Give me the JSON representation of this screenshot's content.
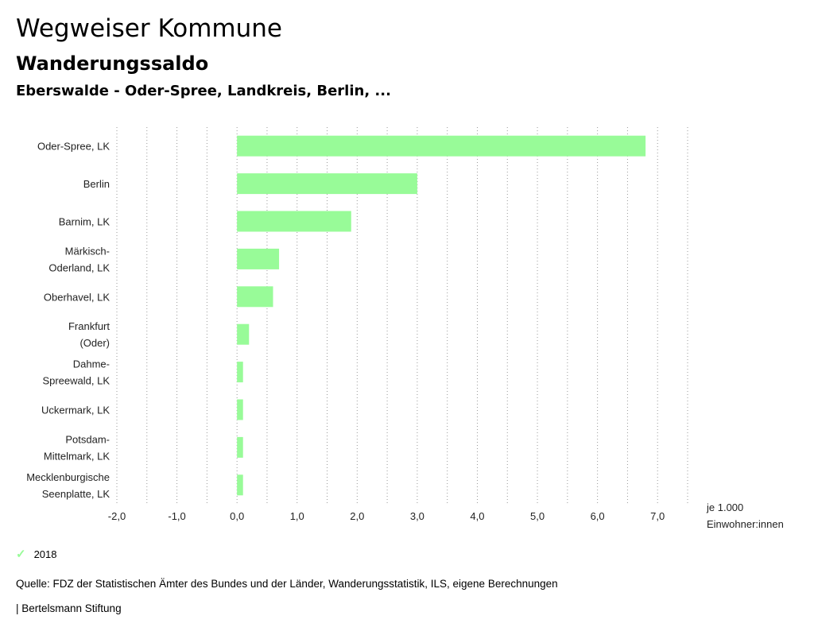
{
  "header": {
    "title": "Wegweiser Kommune",
    "subtitle": "Wanderungssaldo",
    "region": "Eberswalde - Oder-Spree, Landkreis, Berlin, ..."
  },
  "colors": {
    "bar": "#98fb98",
    "grid": "#999999"
  },
  "chart_data": {
    "type": "bar",
    "orientation": "horizontal",
    "categories": [
      [
        "Oder-Spree, LK"
      ],
      [
        "Berlin"
      ],
      [
        "Barnim, LK"
      ],
      [
        "Märkisch-",
        "Oderland, LK"
      ],
      [
        "Oberhavel, LK"
      ],
      [
        "Frankfurt",
        "(Oder)"
      ],
      [
        "Dahme-",
        "Spreewald, LK"
      ],
      [
        "Uckermark, LK"
      ],
      [
        "Potsdam-",
        "Mittelmark, LK"
      ],
      [
        "Mecklenburgische",
        "Seenplatte, LK"
      ]
    ],
    "series": [
      {
        "name": "2018",
        "values": [
          6.8,
          3.0,
          1.9,
          0.7,
          0.6,
          0.2,
          0.1,
          0.1,
          0.1,
          0.1
        ]
      }
    ],
    "xlim": [
      -2.0,
      7.5
    ],
    "xticks": [
      -2.0,
      -1.0,
      0.0,
      1.0,
      2.0,
      3.0,
      4.0,
      5.0,
      6.0,
      7.0
    ],
    "xtick_labels": [
      "-2,0",
      "-1,0",
      "0,0",
      "1,0",
      "2,0",
      "3,0",
      "4,0",
      "5,0",
      "6,0",
      "7,0"
    ],
    "unit_label": [
      "je 1.000",
      "Einwohner:innen"
    ],
    "grid": true
  },
  "legend": {
    "items": [
      {
        "label": "2018",
        "icon": "check-icon"
      }
    ]
  },
  "footer": {
    "source": "Quelle: FDZ der Statistischen Ämter des Bundes und der Länder, Wanderungsstatistik, ILS, eigene Berechnungen",
    "brand": "| Bertelsmann Stiftung"
  }
}
